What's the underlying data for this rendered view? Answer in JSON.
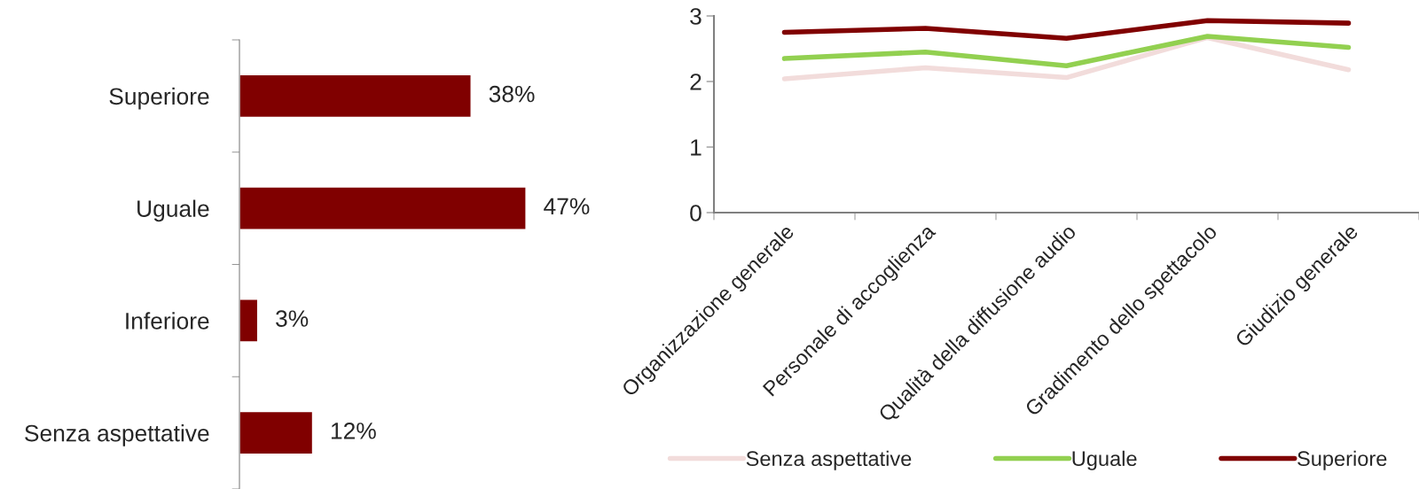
{
  "chart_data": [
    {
      "type": "bar",
      "orientation": "horizontal",
      "categories": [
        "Superiore",
        "Uguale",
        "Inferiore",
        "Senza aspettative"
      ],
      "values": [
        38,
        47,
        3,
        12
      ],
      "value_labels": [
        "38%",
        "47%",
        "3%",
        "12%"
      ],
      "color": "#800000",
      "tick_labels": "y",
      "grid": false
    },
    {
      "type": "line",
      "categories": [
        "Organizzazione generale",
        "Personale di accoglienza",
        "Qualità della diffusione audio",
        "Gradimento dello spettacolo",
        "Giudizio generale"
      ],
      "ylim": [
        0,
        3
      ],
      "yticks": [
        0,
        1,
        2,
        3
      ],
      "grid": false,
      "legend": "bottom",
      "marker": "none",
      "line_style": "solid",
      "series": [
        {
          "name": "Senza aspettative",
          "color": "#f2dcdb",
          "values": [
            2.04,
            2.21,
            2.06,
            2.67,
            2.18
          ]
        },
        {
          "name": "Uguale",
          "color": "#92d050",
          "values": [
            2.35,
            2.45,
            2.24,
            2.69,
            2.52
          ]
        },
        {
          "name": "Superiore",
          "color": "#800000",
          "values": [
            2.75,
            2.81,
            2.66,
            2.93,
            2.89
          ]
        }
      ]
    }
  ]
}
